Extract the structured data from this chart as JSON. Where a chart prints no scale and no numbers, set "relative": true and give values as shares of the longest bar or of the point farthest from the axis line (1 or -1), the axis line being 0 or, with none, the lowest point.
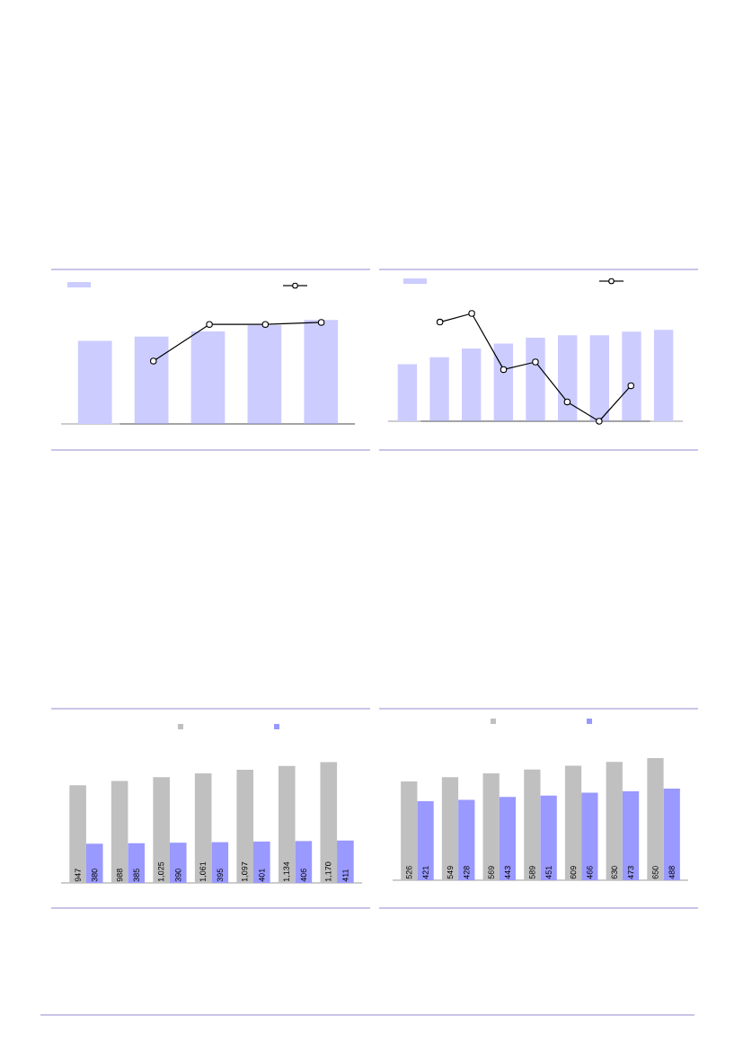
{
  "chart_data": [
    {
      "type": "bar",
      "relative": true,
      "categories": [
        null,
        null,
        null,
        null,
        null
      ],
      "series": [
        {
          "color": "#ccccff",
          "values": [
            0.8,
            0.84,
            0.89,
            0.95,
            1
          ]
        }
      ]
    },
    {
      "type": "line",
      "relative": true,
      "categories": [
        null,
        null,
        null,
        null
      ],
      "marker": "circle",
      "series": [
        {
          "color": "#000000",
          "values": [
            0.62,
            0.98,
            0.98,
            1
          ]
        }
      ]
    },
    {
      "type": "bar",
      "relative": true,
      "categories": [
        null,
        null,
        null,
        null,
        null,
        null,
        null,
        null,
        null
      ],
      "series": [
        {
          "color": "#ccccff",
          "values": [
            0.625,
            0.7,
            0.795,
            0.85,
            0.915,
            0.94,
            0.94,
            0.98,
            1
          ]
        }
      ]
    },
    {
      "type": "line",
      "relative": true,
      "categories": [
        null,
        null,
        null,
        null,
        null,
        null,
        null
      ],
      "marker": "circle",
      "series": [
        {
          "color": "#000000",
          "values": [
            0.92,
            1,
            0.48,
            0.55,
            0.18,
            0,
            0.33
          ]
        }
      ]
    },
    {
      "type": "bar",
      "categories": [
        null,
        null,
        null,
        null,
        null,
        null,
        null
      ],
      "series": [
        {
          "color": "#c0c0c0",
          "values": [
            947,
            988,
            1025,
            1061,
            1097,
            1134,
            1170
          ],
          "value_labels": [
            "947",
            "988",
            "1,025",
            "1,061",
            "1,097",
            "1,134",
            "1,170"
          ]
        },
        {
          "color": "#9999ff",
          "values": [
            380,
            385,
            390,
            395,
            401,
            406,
            411
          ],
          "value_labels": [
            "380",
            "385",
            "390",
            "395",
            "401",
            "406",
            "411"
          ]
        }
      ]
    },
    {
      "type": "bar",
      "categories": [
        null,
        null,
        null,
        null,
        null,
        null,
        null
      ],
      "data_labels": true,
      "series": [
        {
          "color": "#c0c0c0",
          "values": [
            526,
            549,
            569,
            589,
            609,
            630,
            650
          ]
        },
        {
          "color": "#9999ff",
          "values": [
            421,
            428,
            443,
            451,
            466,
            473,
            488
          ]
        }
      ]
    }
  ]
}
